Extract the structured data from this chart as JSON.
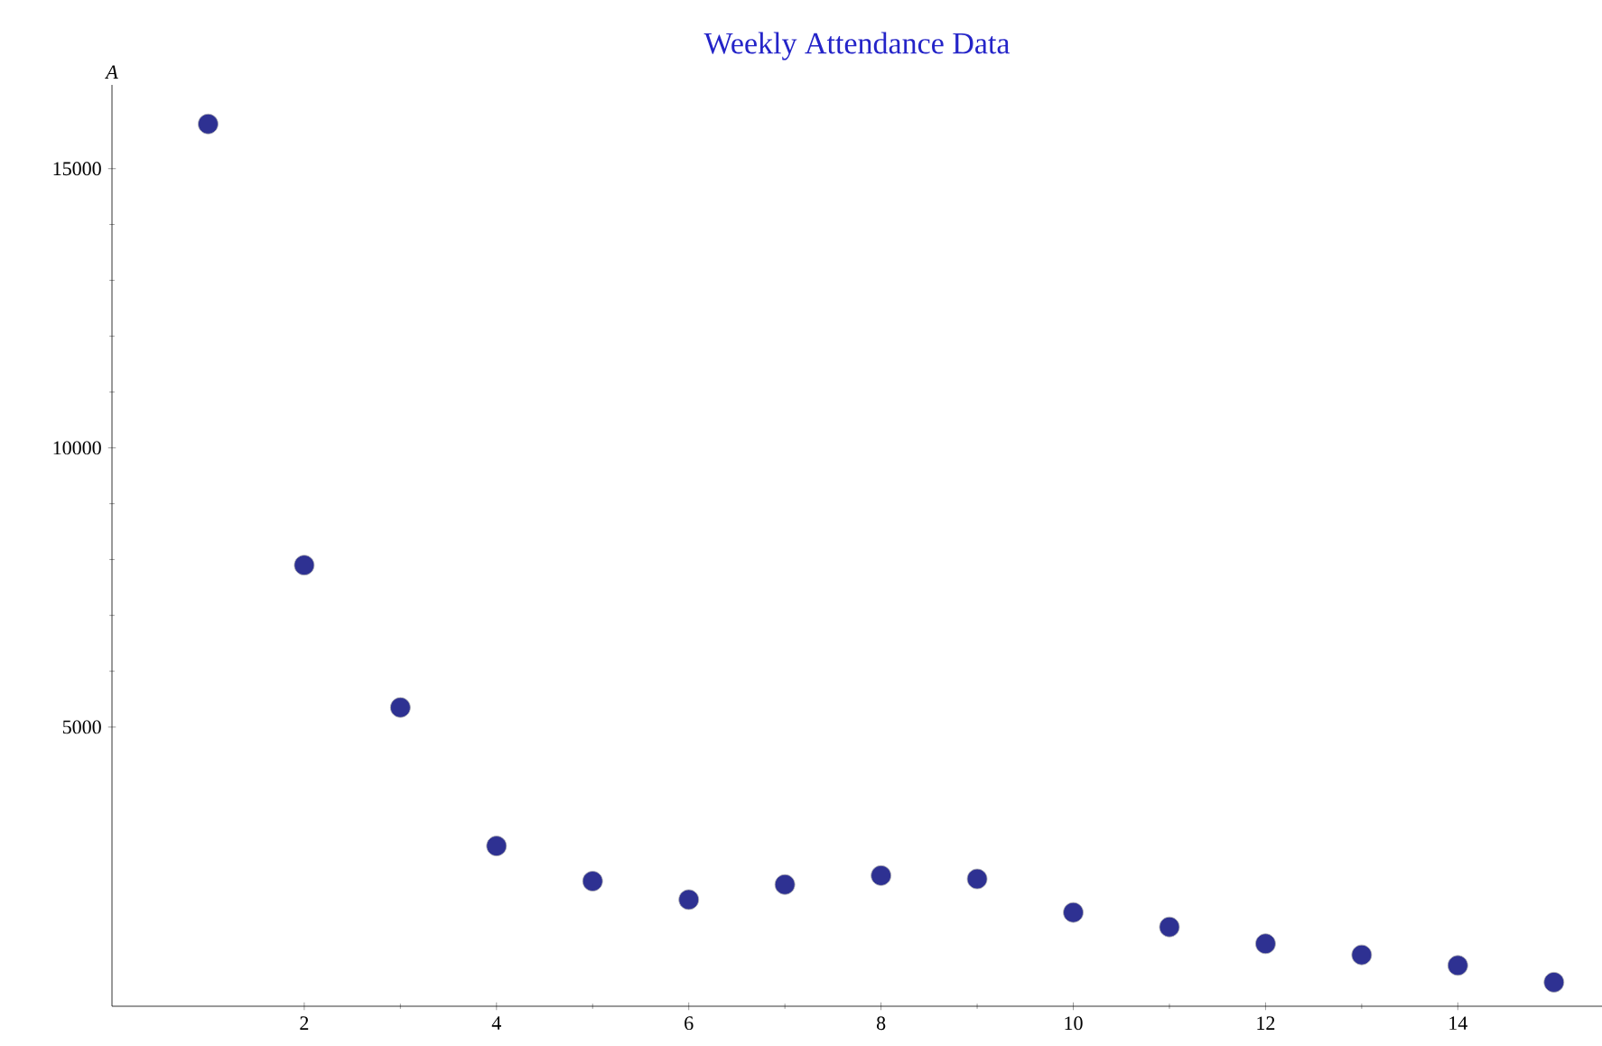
{
  "chart_data": {
    "type": "scatter",
    "title": "Weekly Attendance Data",
    "ylabel": "A",
    "x": [
      1,
      2,
      3,
      4,
      5,
      6,
      7,
      8,
      9,
      10,
      11,
      12,
      13,
      14,
      15
    ],
    "series": [
      {
        "color": "#2e3192",
        "values": [
          15800,
          7900,
          5350,
          2870,
          2240,
          1910,
          2180,
          2340,
          2280,
          1680,
          1420,
          1120,
          920,
          730,
          430
        ]
      }
    ],
    "xlim": [
      0,
      15.5
    ],
    "ylim": [
      0,
      16500
    ],
    "xticks": [
      2,
      4,
      6,
      8,
      10,
      12,
      14
    ],
    "yticks": [
      5000,
      10000,
      15000
    ],
    "marker": "circle",
    "grid": false
  }
}
